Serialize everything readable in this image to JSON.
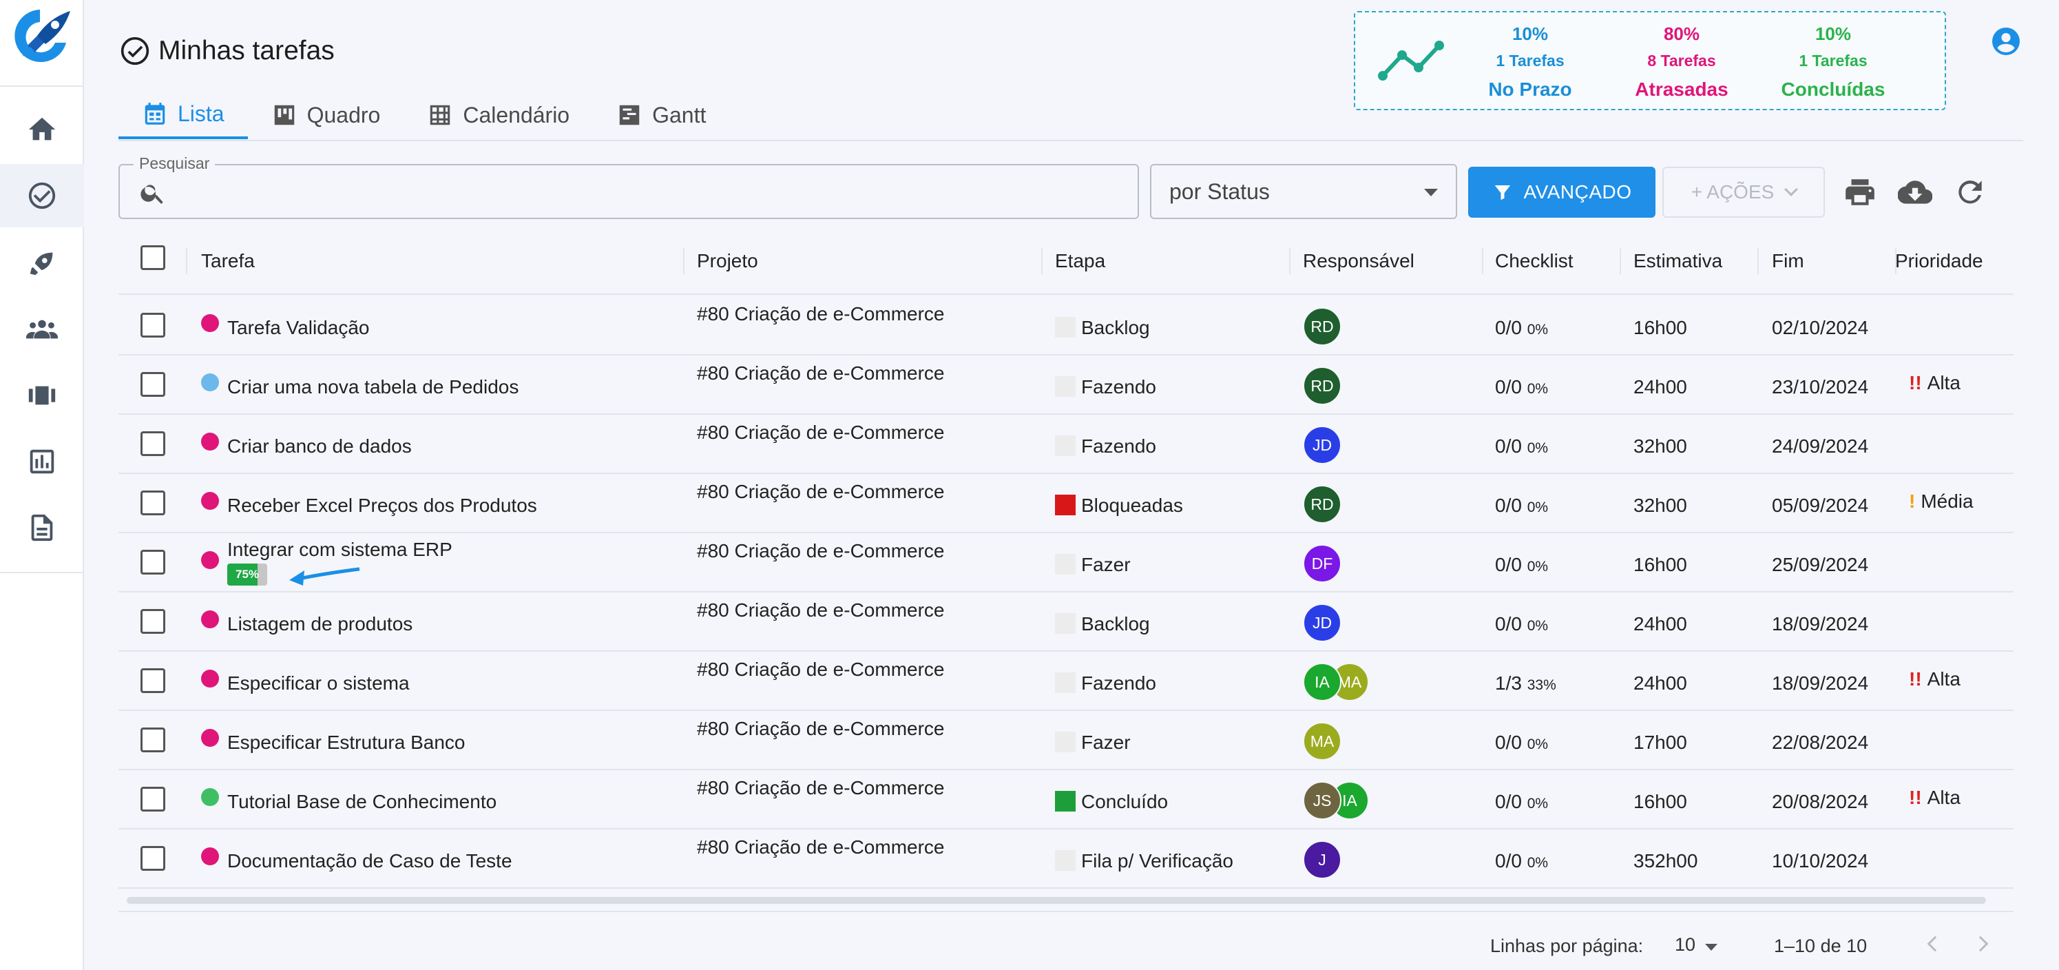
{
  "header": {
    "title": "Minhas tarefas"
  },
  "tabs": [
    {
      "label": "Lista",
      "icon": "list-calendar-icon",
      "active": true
    },
    {
      "label": "Quadro",
      "icon": "board-icon"
    },
    {
      "label": "Calendário",
      "icon": "calendar-grid-icon"
    },
    {
      "label": "Gantt",
      "icon": "gantt-icon"
    }
  ],
  "stats": [
    {
      "pct": "10%",
      "count": "1 Tarefas",
      "label": "No Prazo",
      "color": "#1b8fd6"
    },
    {
      "pct": "80%",
      "count": "8 Tarefas",
      "label": "Atrasadas",
      "color": "#e0157a"
    },
    {
      "pct": "10%",
      "count": "1 Tarefas",
      "label": "Concluídas",
      "color": "#2bb24c"
    }
  ],
  "toolbar": {
    "search_label": "Pesquisar",
    "search_value": "",
    "status_select": "por Status",
    "advanced_label": "AVANÇADO",
    "actions_label": "+ AÇÕES"
  },
  "table": {
    "headers": [
      "Tarefa",
      "Projeto",
      "Etapa",
      "Responsável",
      "Checklist",
      "Estimativa",
      "Fim",
      "Prioridade"
    ],
    "rows": [
      {
        "dot": "#e0157a",
        "task": "Tarefa Validação",
        "project": "#80 Criação de e-Commerce",
        "stage": "Backlog",
        "stage_color": "#ececec",
        "avatars": [
          {
            "i": "RD",
            "c": "#1f5e2e"
          }
        ],
        "checklist": "0/0",
        "checklist_pct": "0%",
        "estimate": "16h00",
        "end": "02/10/2024",
        "priority": "",
        "priority_mark": ""
      },
      {
        "dot": "#6cb8ea",
        "task": "Criar uma nova tabela de Pedidos",
        "project": "#80 Criação de e-Commerce",
        "stage": "Fazendo",
        "stage_color": "#ececec",
        "avatars": [
          {
            "i": "RD",
            "c": "#1f5e2e"
          }
        ],
        "checklist": "0/0",
        "checklist_pct": "0%",
        "estimate": "24h00",
        "end": "23/10/2024",
        "priority": "Alta",
        "priority_mark": "!!",
        "priority_color": "#e02020"
      },
      {
        "dot": "#e0157a",
        "task": "Criar banco de dados",
        "project": "#80 Criação de e-Commerce",
        "stage": "Fazendo",
        "stage_color": "#ececec",
        "avatars": [
          {
            "i": "JD",
            "c": "#2a3ee8"
          }
        ],
        "checklist": "0/0",
        "checklist_pct": "0%",
        "estimate": "32h00",
        "end": "24/09/2024",
        "priority": "",
        "priority_mark": ""
      },
      {
        "dot": "#e0157a",
        "task": "Receber Excel Preços dos Produtos",
        "project": "#80 Criação de e-Commerce",
        "stage": "Bloqueadas",
        "stage_color": "#d81818",
        "avatars": [
          {
            "i": "RD",
            "c": "#1f5e2e"
          }
        ],
        "checklist": "0/0",
        "checklist_pct": "0%",
        "estimate": "32h00",
        "end": "05/09/2024",
        "priority": "Média",
        "priority_mark": "!",
        "priority_color": "#f0a010"
      },
      {
        "dot": "#e0157a",
        "task": "Integrar com sistema ERP",
        "progress": "75%",
        "progress_value": 0.75,
        "project": "#80 Criação de e-Commerce",
        "stage": "Fazer",
        "stage_color": "#ececec",
        "avatars": [
          {
            "i": "DF",
            "c": "#7b18e8"
          }
        ],
        "checklist": "0/0",
        "checklist_pct": "0%",
        "estimate": "16h00",
        "end": "25/09/2024",
        "priority": "",
        "priority_mark": ""
      },
      {
        "dot": "#e0157a",
        "task": "Listagem de produtos",
        "project": "#80 Criação de e-Commerce",
        "stage": "Backlog",
        "stage_color": "#ececec",
        "avatars": [
          {
            "i": "JD",
            "c": "#2a3ee8"
          }
        ],
        "checklist": "0/0",
        "checklist_pct": "0%",
        "estimate": "24h00",
        "end": "18/09/2024",
        "priority": "",
        "priority_mark": ""
      },
      {
        "dot": "#e0157a",
        "task": "Especificar o sistema",
        "project": "#80 Criação de e-Commerce",
        "stage": "Fazendo",
        "stage_color": "#ececec",
        "avatars": [
          {
            "i": "IA",
            "c": "#1aa82e"
          },
          {
            "i": "MA",
            "c": "#9aab1e"
          }
        ],
        "checklist": "1/3",
        "checklist_pct": "33%",
        "estimate": "24h00",
        "end": "18/09/2024",
        "priority": "Alta",
        "priority_mark": "!!",
        "priority_color": "#e02020"
      },
      {
        "dot": "#e0157a",
        "task": "Especificar Estrutura Banco",
        "project": "#80 Criação de e-Commerce",
        "stage": "Fazer",
        "stage_color": "#ececec",
        "avatars": [
          {
            "i": "MA",
            "c": "#9aab1e"
          }
        ],
        "checklist": "0/0",
        "checklist_pct": "0%",
        "estimate": "17h00",
        "end": "22/08/2024",
        "priority": "",
        "priority_mark": ""
      },
      {
        "dot": "#3fbf64",
        "task": "Tutorial Base de Conhecimento",
        "project": "#80 Criação de e-Commerce",
        "stage": "Concluído",
        "stage_color": "#1e9e3a",
        "avatars": [
          {
            "i": "JS",
            "c": "#6e6440"
          },
          {
            "i": "IA",
            "c": "#1aa82e"
          }
        ],
        "checklist": "0/0",
        "checklist_pct": "0%",
        "estimate": "16h00",
        "end": "20/08/2024",
        "priority": "Alta",
        "priority_mark": "!!",
        "priority_color": "#e02020"
      },
      {
        "dot": "#e0157a",
        "task": "Documentação de Caso de Teste",
        "project": "#80 Criação de e-Commerce",
        "stage": "Fila p/ Verificação",
        "stage_color": "#ececec",
        "avatars": [
          {
            "i": "J",
            "c": "#4a1aa0"
          }
        ],
        "checklist": "0/0",
        "checklist_pct": "0%",
        "estimate": "352h00",
        "end": "10/10/2024",
        "priority": "",
        "priority_mark": ""
      }
    ]
  },
  "pagination": {
    "rows_label": "Linhas por página:",
    "rows_value": "10",
    "range": "1–10 de 10"
  }
}
